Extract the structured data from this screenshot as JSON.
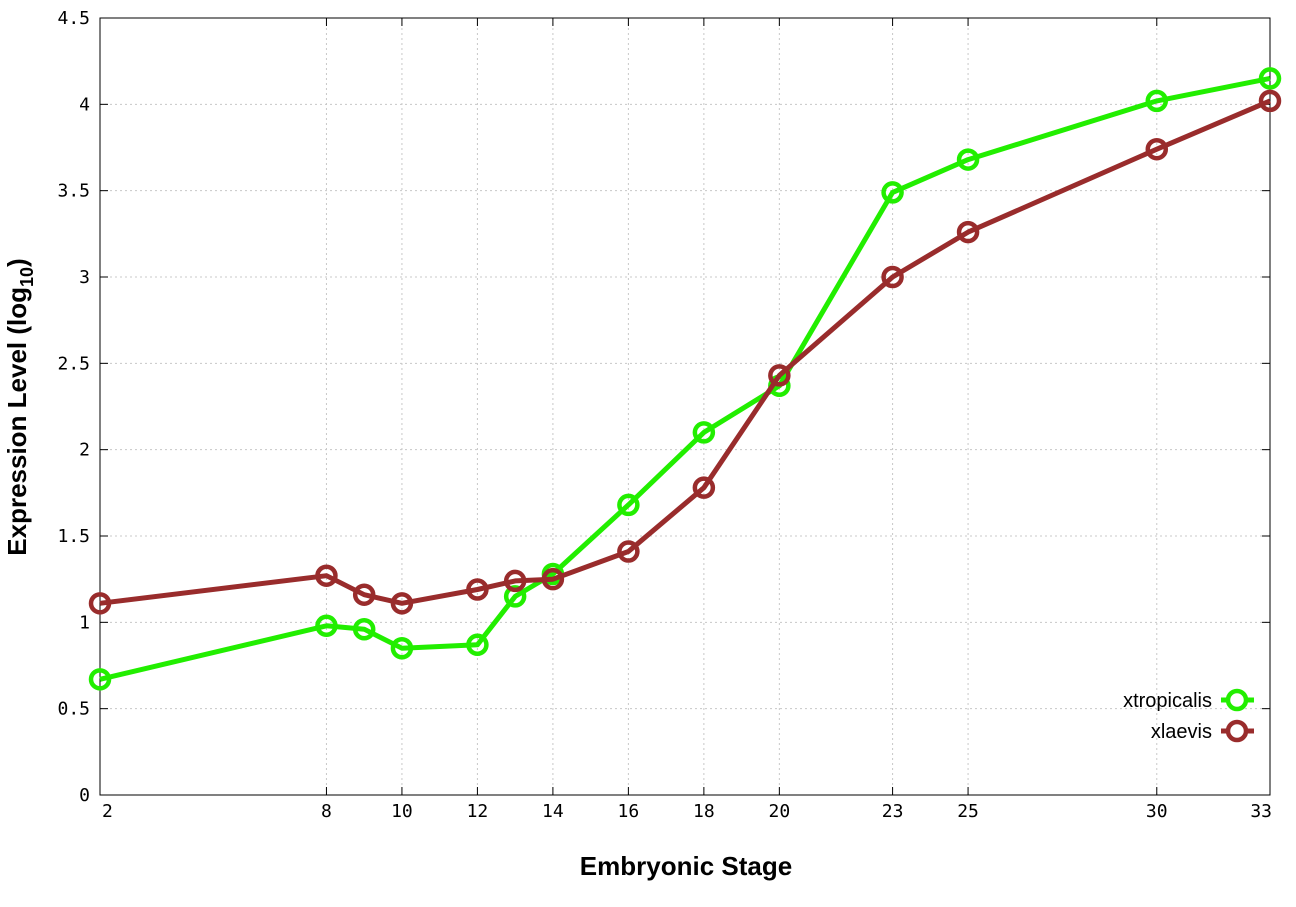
{
  "chart_data": {
    "type": "line",
    "xlabel": "Embryonic Stage",
    "ylabel_main": "Expression Level (log",
    "ylabel_sub": "10",
    "ylabel_close": ")",
    "xlim": [
      2,
      33
    ],
    "ylim": [
      0,
      4.5
    ],
    "x_ticks": [
      2,
      8,
      10,
      12,
      14,
      16,
      18,
      20,
      23,
      25,
      30,
      33
    ],
    "y_ticks": [
      0,
      0.5,
      1,
      1.5,
      2,
      2.5,
      3,
      3.5,
      4,
      4.5
    ],
    "y_tick_labels": [
      "0",
      "0.5",
      "1",
      "1.5",
      "2",
      "2.5",
      "3",
      "3.5",
      "4",
      "4.5"
    ],
    "grid": true,
    "legend_position": "bottom-right",
    "series": [
      {
        "name": "xtropicalis",
        "color": "#22ee00",
        "x": [
          2,
          8,
          9,
          10,
          12,
          13,
          14,
          16,
          18,
          20,
          23,
          25,
          30,
          33
        ],
        "y": [
          0.67,
          0.98,
          0.96,
          0.85,
          0.87,
          1.15,
          1.28,
          1.68,
          2.1,
          2.37,
          3.49,
          3.68,
          4.02,
          4.15
        ]
      },
      {
        "name": "xlaevis",
        "color": "#992c2c",
        "x": [
          2,
          8,
          9,
          10,
          12,
          13,
          14,
          16,
          18,
          20,
          23,
          25,
          30,
          33
        ],
        "y": [
          1.11,
          1.27,
          1.16,
          1.11,
          1.19,
          1.24,
          1.25,
          1.41,
          1.78,
          2.43,
          3.0,
          3.26,
          3.74,
          4.02
        ]
      }
    ]
  }
}
